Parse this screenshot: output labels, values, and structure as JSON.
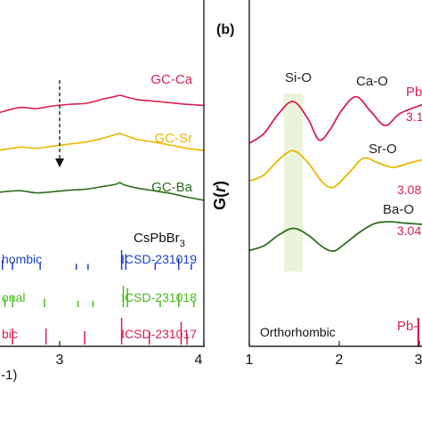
{
  "chart_data": [
    {
      "panel": "a",
      "type": "line",
      "xlabel": "-1)",
      "x_ticks": [
        "3",
        "4"
      ],
      "xlim": [
        1.55,
        4.0
      ],
      "series": [
        {
          "name": "GC-Ca",
          "color": "#d6214f",
          "x": [
            1.55,
            1.8,
            2.0,
            2.2,
            2.4,
            2.6,
            2.8,
            2.95,
            3.0,
            3.05,
            3.2,
            3.4,
            3.6,
            3.8,
            4.0
          ],
          "y": [
            0.62,
            0.72,
            0.7,
            0.75,
            0.78,
            0.8,
            0.88,
            0.93,
            0.95,
            0.93,
            0.87,
            0.84,
            0.81,
            0.78,
            0.76
          ]
        },
        {
          "name": "GC-Sr",
          "color": "#e8b800",
          "x": [
            1.55,
            1.8,
            2.0,
            2.2,
            2.4,
            2.6,
            2.8,
            2.95,
            3.0,
            3.05,
            3.2,
            3.4,
            3.6,
            3.8,
            4.0
          ],
          "y": [
            0.7,
            0.76,
            0.74,
            0.78,
            0.82,
            0.86,
            0.93,
            1.0,
            1.02,
            0.99,
            0.91,
            0.86,
            0.8,
            0.74,
            0.7
          ]
        },
        {
          "name": "GC-Ba",
          "color": "#2e6b1c",
          "x": [
            1.55,
            1.8,
            2.0,
            2.2,
            2.4,
            2.6,
            2.8,
            2.95,
            3.0,
            3.05,
            3.2,
            3.4,
            3.6,
            3.8,
            4.0
          ],
          "y": [
            0.75,
            0.78,
            0.74,
            0.76,
            0.79,
            0.81,
            0.86,
            0.9,
            0.93,
            0.89,
            0.83,
            0.78,
            0.73,
            0.66,
            0.6
          ]
        }
      ],
      "annotations": {
        "phase_label": "CsPbBr",
        "phase_subscript": "3"
      },
      "references": [
        {
          "phase": "hombic",
          "card": "ICSD-231019",
          "color": "#1f3fc4",
          "peaks": [
            {
              "x": 1.6,
              "h": 0.5
            },
            {
              "x": 1.72,
              "h": 0.4
            },
            {
              "x": 2.05,
              "h": 0.35
            },
            {
              "x": 2.48,
              "h": 0.3
            },
            {
              "x": 2.62,
              "h": 0.3
            },
            {
              "x": 3.02,
              "h": 1.0
            },
            {
              "x": 3.07,
              "h": 0.8
            },
            {
              "x": 3.42,
              "h": 0.35
            },
            {
              "x": 3.7,
              "h": 0.6
            },
            {
              "x": 3.85,
              "h": 0.3
            }
          ]
        },
        {
          "phase": "onal",
          "card": "ICSD-231018",
          "color": "#4bb81e",
          "peaks": [
            {
              "x": 1.63,
              "h": 0.45
            },
            {
              "x": 1.72,
              "h": 0.5
            },
            {
              "x": 2.1,
              "h": 0.4
            },
            {
              "x": 2.5,
              "h": 0.3
            },
            {
              "x": 2.68,
              "h": 0.3
            },
            {
              "x": 3.04,
              "h": 1.0
            },
            {
              "x": 3.09,
              "h": 0.9
            },
            {
              "x": 3.48,
              "h": 0.3
            },
            {
              "x": 3.7,
              "h": 0.6
            },
            {
              "x": 3.88,
              "h": 0.3
            }
          ]
        },
        {
          "phase": "bic",
          "card": "ICSD-231017",
          "color": "#d6214f",
          "peaks": [
            {
              "x": 1.72,
              "h": 0.6
            },
            {
              "x": 2.12,
              "h": 0.6
            },
            {
              "x": 2.58,
              "h": 0.5
            },
            {
              "x": 3.02,
              "h": 1.0
            },
            {
              "x": 3.35,
              "h": 0.5
            },
            {
              "x": 3.73,
              "h": 0.85
            },
            {
              "x": 3.8,
              "h": 0.4
            }
          ]
        }
      ]
    },
    {
      "panel": "b",
      "type": "line",
      "panel_label": "(b)",
      "ylabel": "G(r)",
      "x_ticks": [
        "1",
        "2",
        "3"
      ],
      "xlim": [
        1.0,
        3.35
      ],
      "highlight_band": [
        1.47,
        1.73
      ],
      "series": [
        {
          "name": "GC-Ca",
          "color": "#d6214f",
          "x": [
            1.0,
            1.2,
            1.4,
            1.6,
            1.8,
            1.95,
            2.1,
            2.25,
            2.45,
            2.65,
            2.85,
            3.05,
            3.35
          ],
          "y": [
            0.18,
            0.3,
            0.55,
            0.7,
            0.48,
            0.22,
            0.35,
            0.58,
            0.76,
            0.58,
            0.4,
            0.55,
            0.66
          ]
        },
        {
          "name": "GC-Sr",
          "color": "#e8b800",
          "x": [
            1.0,
            1.2,
            1.4,
            1.6,
            1.8,
            2.0,
            2.15,
            2.35,
            2.55,
            2.75,
            2.95,
            3.15,
            3.35
          ],
          "y": [
            0.32,
            0.4,
            0.6,
            0.72,
            0.56,
            0.3,
            0.24,
            0.42,
            0.62,
            0.56,
            0.5,
            0.55,
            0.6
          ]
        },
        {
          "name": "GC-Ba",
          "color": "#2e6b1c",
          "x": [
            1.0,
            1.2,
            1.4,
            1.6,
            1.8,
            2.0,
            2.15,
            2.3,
            2.5,
            2.7,
            2.9,
            3.1,
            3.35
          ],
          "y": [
            0.15,
            0.22,
            0.38,
            0.48,
            0.38,
            0.2,
            0.14,
            0.25,
            0.42,
            0.55,
            0.58,
            0.56,
            0.54
          ]
        }
      ],
      "peak_labels": [
        {
          "text": "Si-O",
          "color": "#222222"
        },
        {
          "text": "Ca-O",
          "color": "#222222"
        },
        {
          "text": "Sr-O",
          "color": "#222222"
        },
        {
          "text": "Ba-O",
          "color": "#222222"
        },
        {
          "text": "Pb",
          "color": "#d6214f"
        },
        {
          "text": "Pb-",
          "color": "#d6214f"
        }
      ],
      "distance_labels": [
        {
          "text": "3.1",
          "color": "#d6214f"
        },
        {
          "text": "3.08",
          "color": "#d6214f"
        },
        {
          "text": "3.04",
          "color": "#d6214f"
        }
      ],
      "reference_label": "Orthorhombic",
      "reference_peak_x": 3.3
    }
  ]
}
